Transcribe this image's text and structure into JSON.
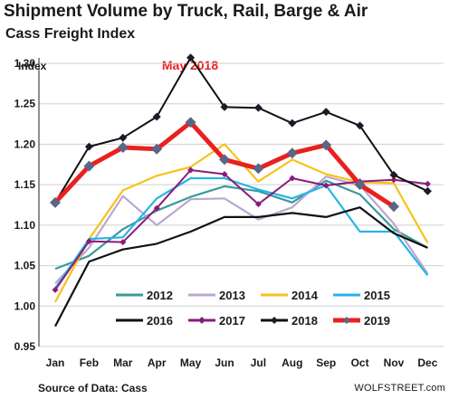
{
  "title": "Shipment Volume by Truck, Rail, Barge & Air",
  "subtitle": "Cass Freight Index",
  "source": "Source of Data: Cass",
  "site": "WOLFSTREET.com",
  "chart_data": {
    "type": "line",
    "ylabel": "Index",
    "xlabel": "",
    "ylim": [
      0.95,
      1.3
    ],
    "yticks": [
      "0.95",
      "1.00",
      "1.05",
      "1.10",
      "1.15",
      "1.20",
      "1.25",
      "1.30"
    ],
    "categories": [
      "Jan",
      "Feb",
      "Mar",
      "Apr",
      "May",
      "Jun",
      "Jul",
      "Aug",
      "Sep",
      "Oct",
      "Nov",
      "Dec"
    ],
    "grid": "horizontal",
    "annotation": {
      "text": "May 2018",
      "category": "May",
      "series": "2018"
    },
    "series": [
      {
        "name": "2012",
        "color": "#3a9a9a",
        "marker": "none",
        "values": [
          1.046,
          1.062,
          1.095,
          1.118,
          1.135,
          1.148,
          1.142,
          1.128,
          1.155,
          1.138,
          1.095,
          1.072
        ]
      },
      {
        "name": "2013",
        "color": "#b9a8cf",
        "marker": "none",
        "values": [
          1.028,
          1.072,
          1.136,
          1.1,
          1.132,
          1.133,
          1.107,
          1.122,
          1.16,
          1.149,
          1.102,
          1.04
        ]
      },
      {
        "name": "2014",
        "color": "#f6c21c",
        "marker": "none",
        "values": [
          1.005,
          1.083,
          1.143,
          1.161,
          1.172,
          1.2,
          1.154,
          1.181,
          1.163,
          1.153,
          1.152,
          1.078
        ]
      },
      {
        "name": "2015",
        "color": "#27b4e6",
        "marker": "none",
        "values": [
          1.022,
          1.083,
          1.085,
          1.133,
          1.158,
          1.158,
          1.144,
          1.133,
          1.149,
          1.092,
          1.092,
          1.038
        ]
      },
      {
        "name": "2016",
        "color": "#111111",
        "marker": "none",
        "values": [
          0.975,
          1.055,
          1.07,
          1.077,
          1.092,
          1.11,
          1.11,
          1.115,
          1.11,
          1.122,
          1.09,
          1.072
        ]
      },
      {
        "name": "2017",
        "color": "#8b1a7a",
        "marker": "diamond",
        "values": [
          1.02,
          1.08,
          1.079,
          1.121,
          1.168,
          1.163,
          1.126,
          1.158,
          1.149,
          1.154,
          1.156,
          1.151
        ]
      },
      {
        "name": "2018",
        "color": "#111111",
        "marker": "diamond",
        "values": [
          1.128,
          1.197,
          1.208,
          1.234,
          1.307,
          1.246,
          1.245,
          1.226,
          1.24,
          1.223,
          1.162,
          1.142
        ]
      },
      {
        "name": "2019",
        "color": "#e8211f",
        "marker": "diamond",
        "values": [
          1.128,
          1.173,
          1.196,
          1.194,
          1.227,
          1.181,
          1.17,
          1.189,
          1.199,
          1.15,
          1.123,
          null
        ]
      }
    ]
  }
}
